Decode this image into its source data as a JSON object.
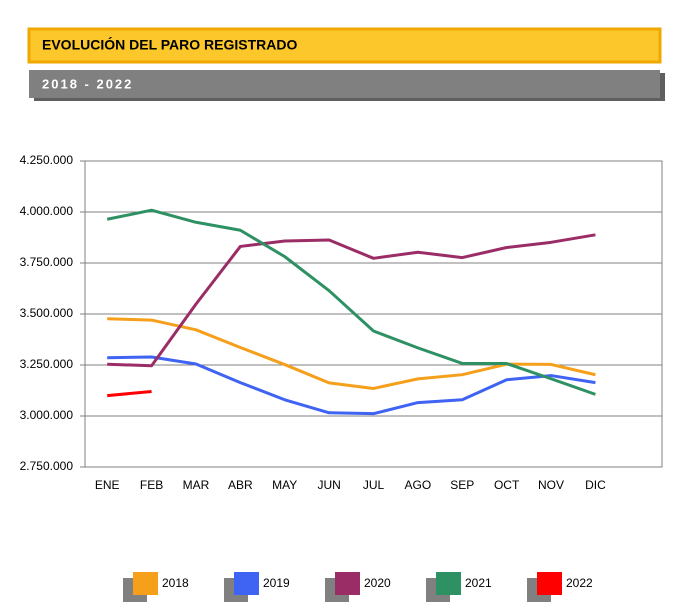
{
  "chart_data": {
    "type": "line",
    "title": "EVOLUCIÓN DEL PARO REGISTRADO",
    "subtitle": "2018 - 2022",
    "categories": [
      "ENE",
      "FEB",
      "MAR",
      "ABR",
      "MAY",
      "JUN",
      "JUL",
      "AGO",
      "SEP",
      "OCT",
      "NOV",
      "DIC"
    ],
    "series": [
      {
        "name": "2018",
        "color": "#f59f1b",
        "values": [
          3476528,
          3470248,
          3422551,
          3335868,
          3252130,
          3162162,
          3135021,
          3182068,
          3202509,
          3254139,
          3252867,
          3202297
        ]
      },
      {
        "name": "2019",
        "color": "#3f63f2",
        "values": [
          3285761,
          3289040,
          3255084,
          3163566,
          3079491,
          3015686,
          3011433,
          3065804,
          3079711,
          3177659,
          3198184,
          3163605
        ]
      },
      {
        "name": "2020",
        "color": "#9b2d66",
        "values": [
          3253853,
          3246047,
          3548312,
          3831203,
          3857776,
          3862883,
          3773034,
          3802814,
          3776485,
          3826043,
          3851312,
          3888137
        ]
      },
      {
        "name": "2021",
        "color": "#2e9164",
        "values": [
          3964353,
          4008789,
          3949640,
          3910628,
          3781250,
          3614339,
          3416498,
          3333915,
          3257802,
          3257068,
          3182687,
          3105905
        ]
      },
      {
        "name": "2022",
        "color": "#ff0000",
        "values": [
          3100000,
          3120000,
          null,
          null,
          null,
          null,
          null,
          null,
          null,
          null,
          null,
          null
        ]
      }
    ],
    "ylim": [
      2750000,
      4250000
    ],
    "yticks": [
      {
        "value": 2750000,
        "label": "2.750.000"
      },
      {
        "value": 3000000,
        "label": "3.000.000"
      },
      {
        "value": 3250000,
        "label": "3.250.000"
      },
      {
        "value": 3500000,
        "label": "3.500.000"
      },
      {
        "value": 3750000,
        "label": "3.750.000"
      },
      {
        "value": 4000000,
        "label": "4.000.000"
      },
      {
        "value": 4250000,
        "label": "4.250.000"
      }
    ],
    "grid": true,
    "legend": "bottom"
  }
}
